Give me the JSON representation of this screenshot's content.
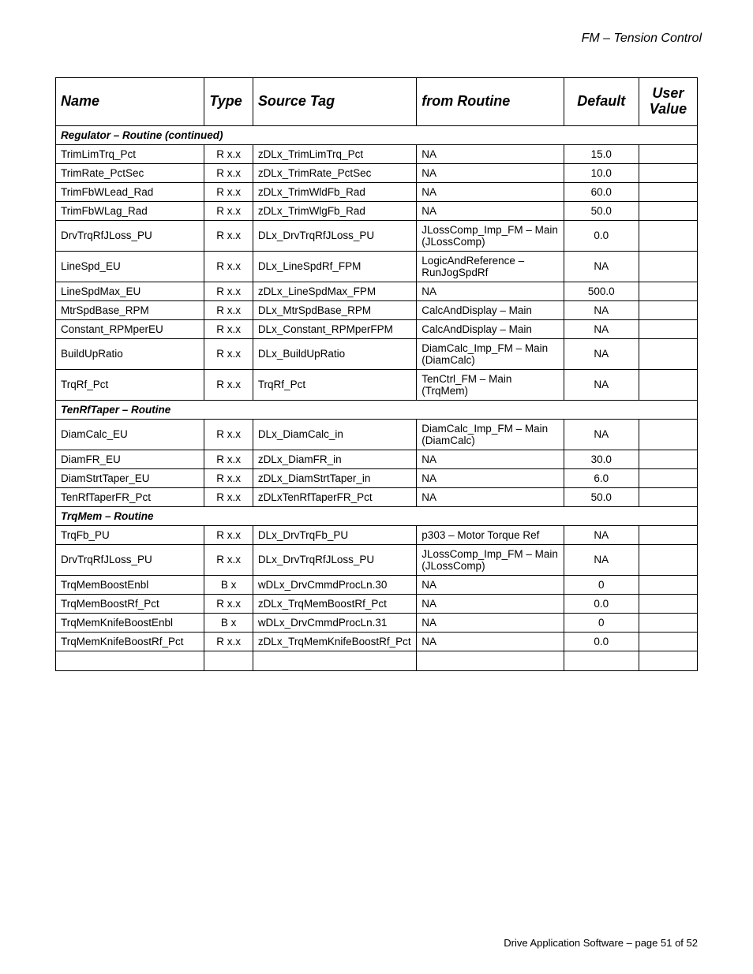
{
  "doc_title": "FM – Tension Control",
  "footer": "Drive Application Software – page 51 of 52",
  "columns": {
    "name": "Name",
    "type": "Type",
    "source": "Source Tag",
    "routine": "from Routine",
    "default": "Default",
    "user": "User Value"
  },
  "sections": [
    {
      "title": "Regulator – Routine (continued)",
      "rows": [
        {
          "name": "TrimLimTrq_Pct",
          "type": "R x.x",
          "src": "zDLx_TrimLimTrq_Pct",
          "routine": "NA",
          "def": "15.0",
          "user": ""
        },
        {
          "name": "TrimRate_PctSec",
          "type": "R x.x",
          "src": "zDLx_TrimRate_PctSec",
          "routine": "NA",
          "def": "10.0",
          "user": ""
        },
        {
          "name": "TrimFbWLead_Rad",
          "type": "R x.x",
          "src": "zDLx_TrimWldFb_Rad",
          "routine": "NA",
          "def": "60.0",
          "user": ""
        },
        {
          "name": "TrimFbWLag_Rad",
          "type": "R x.x",
          "src": "zDLx_TrimWlgFb_Rad",
          "routine": "NA",
          "def": "50.0",
          "user": ""
        },
        {
          "name": "DrvTrqRfJLoss_PU",
          "type": "R x.x",
          "src": "DLx_DrvTrqRfJLoss_PU",
          "routine": "JLossComp_Imp_FM – Main (JLossComp)",
          "def": "0.0",
          "user": ""
        },
        {
          "name": "LineSpd_EU",
          "type": "R x.x",
          "src": "DLx_LineSpdRf_FPM",
          "routine": "LogicAndReference – RunJogSpdRf",
          "def": "NA",
          "user": ""
        },
        {
          "name": "LineSpdMax_EU",
          "type": "R x.x",
          "src": "zDLx_LineSpdMax_FPM",
          "routine": "NA",
          "def": "500.0",
          "user": ""
        },
        {
          "name": "MtrSpdBase_RPM",
          "type": "R x.x",
          "src": "DLx_MtrSpdBase_RPM",
          "routine": "CalcAndDisplay – Main",
          "def": "NA",
          "user": ""
        },
        {
          "name": "Constant_RPMperEU",
          "type": "R x.x",
          "src": "DLx_Constant_RPMperFPM",
          "routine": "CalcAndDisplay – Main",
          "def": "NA",
          "user": ""
        },
        {
          "name": "BuildUpRatio",
          "type": "R x.x",
          "src": "DLx_BuildUpRatio",
          "routine": "DiamCalc_Imp_FM – Main (DiamCalc)",
          "def": "NA",
          "user": ""
        },
        {
          "name": "TrqRf_Pct",
          "type": "R x.x",
          "src": "TrqRf_Pct",
          "routine": "TenCtrl_FM – Main (TrqMem)",
          "def": "NA",
          "user": ""
        }
      ]
    },
    {
      "title": "TenRfTaper – Routine",
      "rows": [
        {
          "name": "DiamCalc_EU",
          "type": "R x.x",
          "src": "DLx_DiamCalc_in",
          "routine": "DiamCalc_Imp_FM – Main (DiamCalc)",
          "def": "NA",
          "user": ""
        },
        {
          "name": "DiamFR_EU",
          "type": "R x.x",
          "src": "zDLx_DiamFR_in",
          "routine": "NA",
          "def": "30.0",
          "user": ""
        },
        {
          "name": "DiamStrtTaper_EU",
          "type": "R x.x",
          "src": "zDLx_DiamStrtTaper_in",
          "routine": "NA",
          "def": "6.0",
          "user": ""
        },
        {
          "name": "TenRfTaperFR_Pct",
          "type": "R x.x",
          "src": "zDLxTenRfTaperFR_Pct",
          "routine": "NA",
          "def": "50.0",
          "user": ""
        }
      ]
    },
    {
      "title": "TrqMem – Routine",
      "rows": [
        {
          "name": "TrqFb_PU",
          "type": "R x.x",
          "src": "DLx_DrvTrqFb_PU",
          "routine": "p303 – Motor Torque Ref",
          "def": "NA",
          "user": ""
        },
        {
          "name": "DrvTrqRfJLoss_PU",
          "type": "R x.x",
          "src": "DLx_DrvTrqRfJLoss_PU",
          "routine": "JLossComp_Imp_FM – Main (JLossComp)",
          "def": "NA",
          "user": ""
        },
        {
          "name": "TrqMemBoostEnbl",
          "type": "B x",
          "src": "wDLx_DrvCmmdProcLn.30",
          "routine": "NA",
          "def": "0",
          "user": ""
        },
        {
          "name": "TrqMemBoostRf_Pct",
          "type": "R x.x",
          "src": "zDLx_TrqMemBoostRf_Pct",
          "routine": "NA",
          "def": "0.0",
          "user": ""
        },
        {
          "name": "TrqMemKnifeBoostEnbl",
          "type": "B x",
          "src": "wDLx_DrvCmmdProcLn.31",
          "routine": "NA",
          "def": "0",
          "user": ""
        },
        {
          "name": "TrqMemKnifeBoostRf_Pct",
          "type": "R x.x",
          "src": "zDLx_TrqMemKnifeBoostRf_Pct",
          "routine": "NA",
          "def": "0.0",
          "user": ""
        }
      ]
    }
  ]
}
